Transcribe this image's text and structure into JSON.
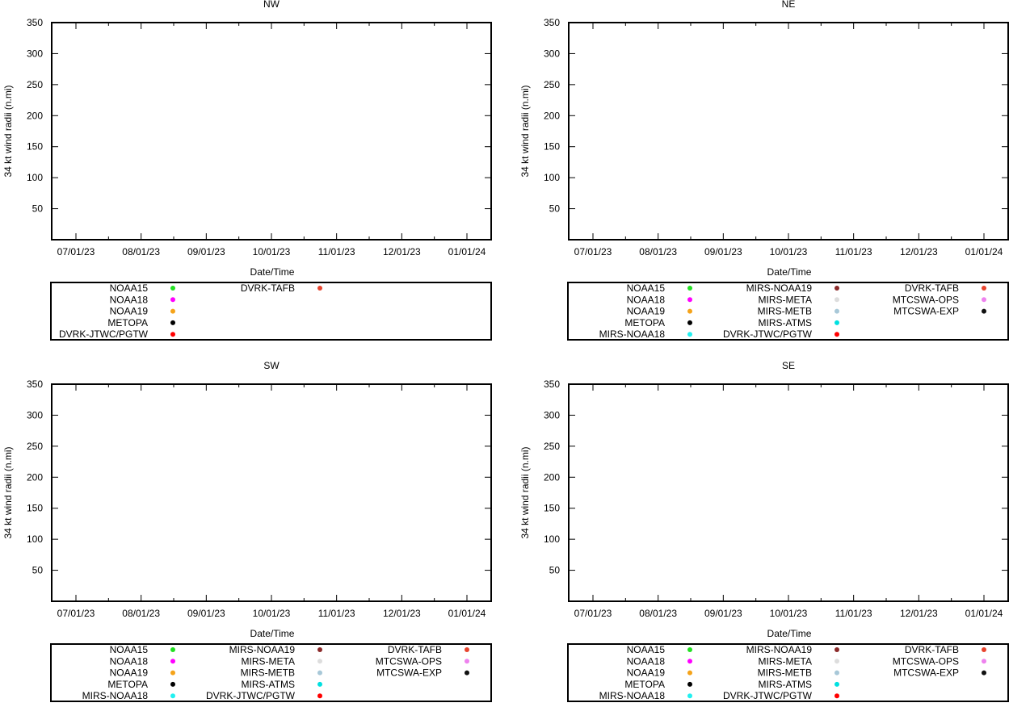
{
  "chart_data": [
    {
      "type": "scatter",
      "title": "NW",
      "xlabel": "Date/Time",
      "ylabel": "34 kt wind radii (n.mi)",
      "x_tick_labels": [
        "07/01/23",
        "08/01/23",
        "09/01/23",
        "10/01/23",
        "11/01/23",
        "12/01/23",
        "01/01/24"
      ],
      "y_ticks": [
        50,
        100,
        150,
        200,
        250,
        300,
        350
      ],
      "ylim": [
        0,
        350
      ],
      "series": [],
      "legend": [
        {
          "name": "NOAA15",
          "color": "#22e022"
        },
        {
          "name": "NOAA18",
          "color": "#ff00ff"
        },
        {
          "name": "NOAA19",
          "color": "#f5a31a"
        },
        {
          "name": "METOPA",
          "color": "#000000"
        },
        {
          "name": "DVRK-JTWC/PGTW",
          "color": "#ff0000"
        },
        {
          "name": "DVRK-TAFB",
          "color": "#e8442e"
        }
      ]
    },
    {
      "type": "scatter",
      "title": "NE",
      "xlabel": "Date/Time",
      "ylabel": "34 kt wind radii (n.mi)",
      "x_tick_labels": [
        "07/01/23",
        "08/01/23",
        "09/01/23",
        "10/01/23",
        "11/01/23",
        "12/01/23",
        "01/01/24"
      ],
      "y_ticks": [
        50,
        100,
        150,
        200,
        250,
        300,
        350
      ],
      "ylim": [
        0,
        350
      ],
      "series": [],
      "legend": [
        {
          "name": "NOAA15",
          "color": "#22e022"
        },
        {
          "name": "NOAA18",
          "color": "#ff00ff"
        },
        {
          "name": "NOAA19",
          "color": "#f5a31a"
        },
        {
          "name": "METOPA",
          "color": "#000000"
        },
        {
          "name": "MIRS-NOAA18",
          "color": "#22f0f0"
        },
        {
          "name": "MIRS-NOAA19",
          "color": "#8b2a2a"
        },
        {
          "name": "MIRS-META",
          "color": "#dddddd"
        },
        {
          "name": "MIRS-METB",
          "color": "#a8c8d8"
        },
        {
          "name": "MIRS-ATMS",
          "color": "#00e0e0"
        },
        {
          "name": "DVRK-JTWC/PGTW",
          "color": "#ff0000"
        },
        {
          "name": "DVRK-TAFB",
          "color": "#e8442e"
        },
        {
          "name": "MTCSWA-OPS",
          "color": "#ee82ee"
        },
        {
          "name": "MTCSWA-EXP",
          "color": "#111111"
        }
      ]
    },
    {
      "type": "scatter",
      "title": "SW",
      "xlabel": "Date/Time",
      "ylabel": "34 kt wind radii (n.mi)",
      "x_tick_labels": [
        "07/01/23",
        "08/01/23",
        "09/01/23",
        "10/01/23",
        "11/01/23",
        "12/01/23",
        "01/01/24"
      ],
      "y_ticks": [
        50,
        100,
        150,
        200,
        250,
        300,
        350
      ],
      "ylim": [
        0,
        350
      ],
      "series": [],
      "legend": [
        {
          "name": "NOAA15",
          "color": "#22e022"
        },
        {
          "name": "NOAA18",
          "color": "#ff00ff"
        },
        {
          "name": "NOAA19",
          "color": "#f5a31a"
        },
        {
          "name": "METOPA",
          "color": "#000000"
        },
        {
          "name": "MIRS-NOAA18",
          "color": "#22f0f0"
        },
        {
          "name": "MIRS-NOAA19",
          "color": "#8b2a2a"
        },
        {
          "name": "MIRS-META",
          "color": "#dddddd"
        },
        {
          "name": "MIRS-METB",
          "color": "#a8c8d8"
        },
        {
          "name": "MIRS-ATMS",
          "color": "#00e0e0"
        },
        {
          "name": "DVRK-JTWC/PGTW",
          "color": "#ff0000"
        },
        {
          "name": "DVRK-TAFB",
          "color": "#e8442e"
        },
        {
          "name": "MTCSWA-OPS",
          "color": "#ee82ee"
        },
        {
          "name": "MTCSWA-EXP",
          "color": "#111111"
        }
      ]
    },
    {
      "type": "scatter",
      "title": "SE",
      "xlabel": "Date/Time",
      "ylabel": "34 kt wind radii (n.mi)",
      "x_tick_labels": [
        "07/01/23",
        "08/01/23",
        "09/01/23",
        "10/01/23",
        "11/01/23",
        "12/01/23",
        "01/01/24"
      ],
      "y_ticks": [
        50,
        100,
        150,
        200,
        250,
        300,
        350
      ],
      "ylim": [
        0,
        350
      ],
      "series": [],
      "legend": [
        {
          "name": "NOAA15",
          "color": "#22e022"
        },
        {
          "name": "NOAA18",
          "color": "#ff00ff"
        },
        {
          "name": "NOAA19",
          "color": "#f5a31a"
        },
        {
          "name": "METOPA",
          "color": "#000000"
        },
        {
          "name": "MIRS-NOAA18",
          "color": "#22f0f0"
        },
        {
          "name": "MIRS-NOAA19",
          "color": "#8b2a2a"
        },
        {
          "name": "MIRS-META",
          "color": "#dddddd"
        },
        {
          "name": "MIRS-METB",
          "color": "#a8c8d8"
        },
        {
          "name": "MIRS-ATMS",
          "color": "#00e0e0"
        },
        {
          "name": "DVRK-JTWC/PGTW",
          "color": "#ff0000"
        },
        {
          "name": "DVRK-TAFB",
          "color": "#e8442e"
        },
        {
          "name": "MTCSWA-OPS",
          "color": "#ee82ee"
        },
        {
          "name": "MTCSWA-EXP",
          "color": "#111111"
        }
      ]
    }
  ]
}
